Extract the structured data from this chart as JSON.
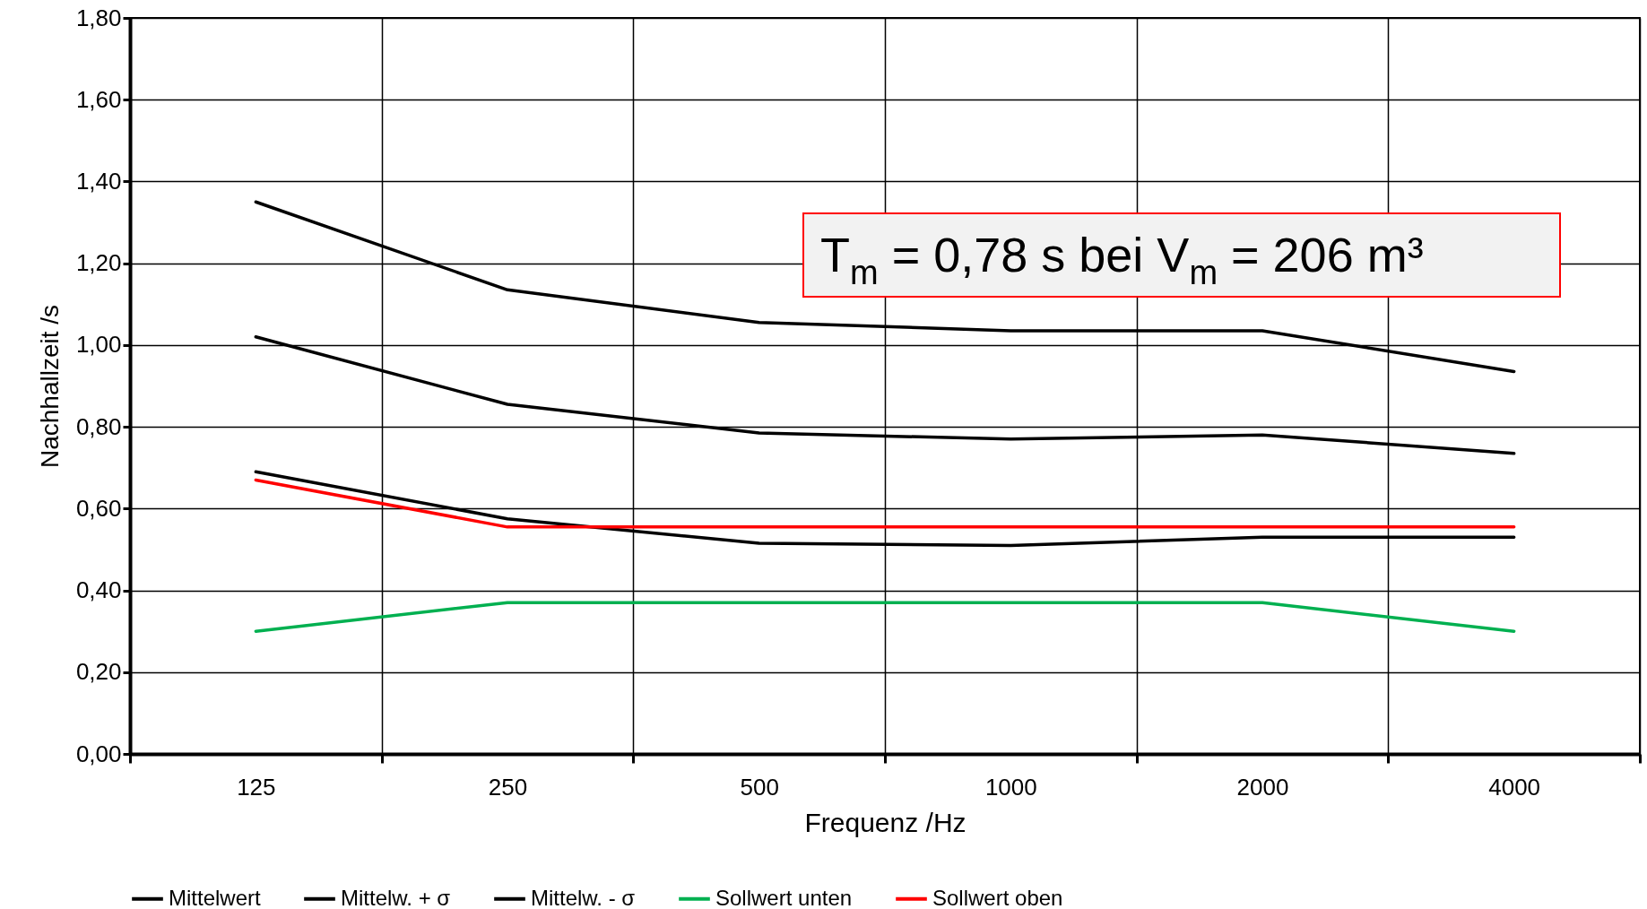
{
  "chart_data": {
    "type": "line",
    "xlabel": "Frequenz /Hz",
    "ylabel": "Nachhallzeit /s",
    "categories": [
      "125",
      "250",
      "500",
      "1000",
      "2000",
      "4000"
    ],
    "series": [
      {
        "name": "Mittelwert",
        "color": "#000000",
        "values": [
          1.02,
          0.855,
          0.785,
          0.77,
          0.78,
          0.735
        ]
      },
      {
        "name": "Mittelw. + σ",
        "color": "#000000",
        "values": [
          1.35,
          1.135,
          1.055,
          1.035,
          1.035,
          0.935
        ]
      },
      {
        "name": "Mittelw. - σ",
        "color": "#000000",
        "values": [
          0.69,
          0.575,
          0.515,
          0.51,
          0.53,
          0.53
        ]
      },
      {
        "name": "Sollwert unten",
        "color": "#00b050",
        "values": [
          0.3,
          0.37,
          0.37,
          0.37,
          0.37,
          0.3
        ]
      },
      {
        "name": "Sollwert oben",
        "color": "#ff0000",
        "values": [
          0.67,
          0.555,
          0.555,
          0.555,
          0.555,
          0.555
        ]
      }
    ],
    "ylim": [
      0,
      1.8
    ],
    "yticks": [
      {
        "value": 0,
        "label": "0,00"
      },
      {
        "value": 0.2,
        "label": "0,20"
      },
      {
        "value": 0.4,
        "label": "0,40"
      },
      {
        "value": 0.6,
        "label": "0,60"
      },
      {
        "value": 0.8,
        "label": "0,80"
      },
      {
        "value": 1.0,
        "label": "1,00"
      },
      {
        "value": 1.2,
        "label": "1,20"
      },
      {
        "value": 1.4,
        "label": "1,40"
      },
      {
        "value": 1.6,
        "label": "1,60"
      },
      {
        "value": 1.8,
        "label": "1,80"
      }
    ],
    "grid": true,
    "legend": "bottom",
    "marker": "none",
    "line_style": "solid",
    "annotations": [
      "T$_{m}$ = 0,78 s bei V$_{m}$ = 206 m³"
    ]
  }
}
